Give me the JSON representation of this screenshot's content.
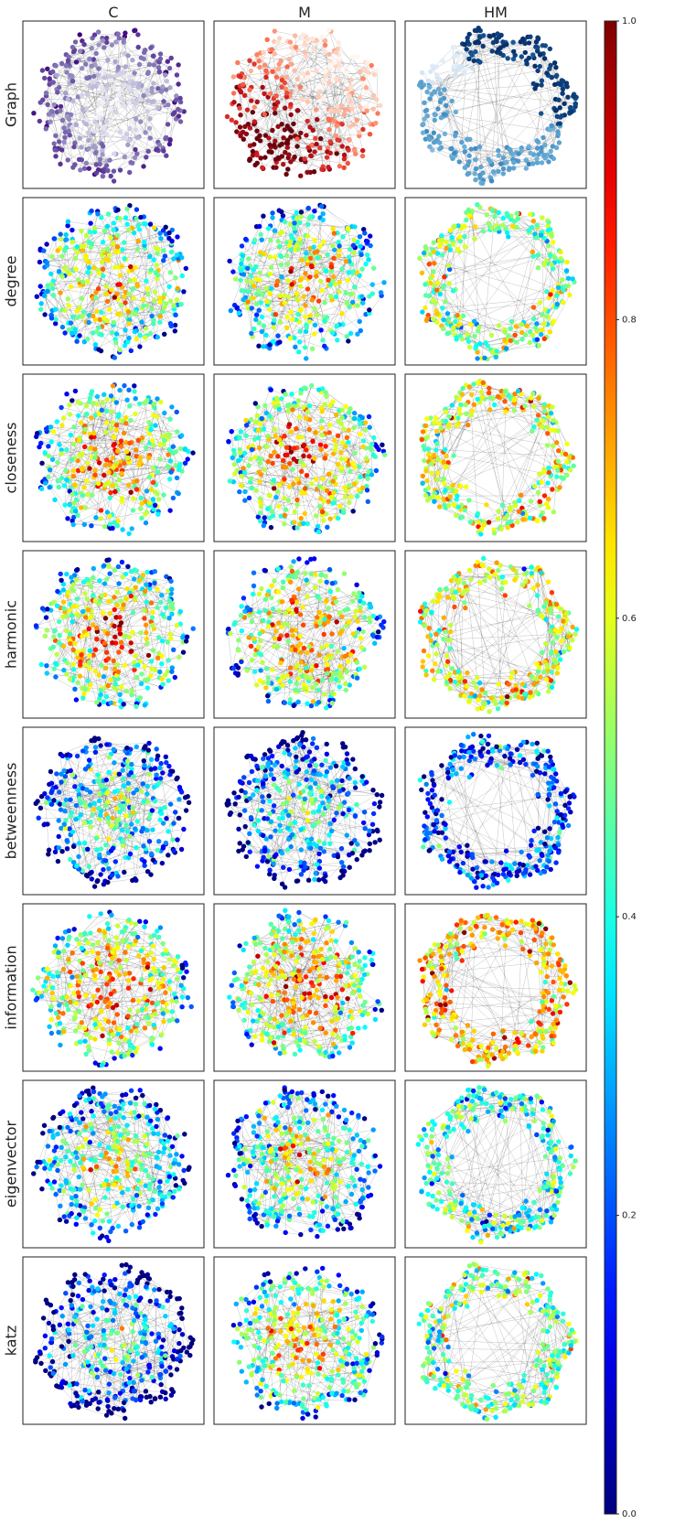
{
  "columns": [
    "C",
    "M",
    "HM"
  ],
  "rows": [
    "Graph",
    "degree",
    "closeness",
    "harmonic",
    "betweenness",
    "information",
    "eigenvector",
    "katz"
  ],
  "colorbar": {
    "colormap": "jet",
    "ticks": [
      "0.0",
      "0.2",
      "0.4",
      "0.6",
      "0.8",
      "1.0"
    ],
    "tick_values": [
      0.0,
      0.2,
      0.4,
      0.6,
      0.8,
      1.0
    ]
  },
  "panel_styles": {
    "C": "filled-disc",
    "M": "filled-disc",
    "HM": "ring-with-hollow-center"
  },
  "graph_row_colormaps": {
    "C": "purples",
    "M": "reds",
    "HM": "blues"
  },
  "metric_mean_levels": {
    "degree": {
      "C": 0.55,
      "M": 0.55,
      "HM": 0.52
    },
    "closeness": {
      "C": 0.62,
      "M": 0.65,
      "HM": 0.58
    },
    "harmonic": {
      "C": 0.62,
      "M": 0.62,
      "HM": 0.58
    },
    "betweenness": {
      "C": 0.35,
      "M": 0.32,
      "HM": 0.18
    },
    "information": {
      "C": 0.65,
      "M": 0.65,
      "HM": 0.7
    },
    "eigenvector": {
      "C": 0.45,
      "M": 0.48,
      "HM": 0.4
    },
    "katz": {
      "C": 0.28,
      "M": 0.55,
      "HM": 0.48
    }
  }
}
